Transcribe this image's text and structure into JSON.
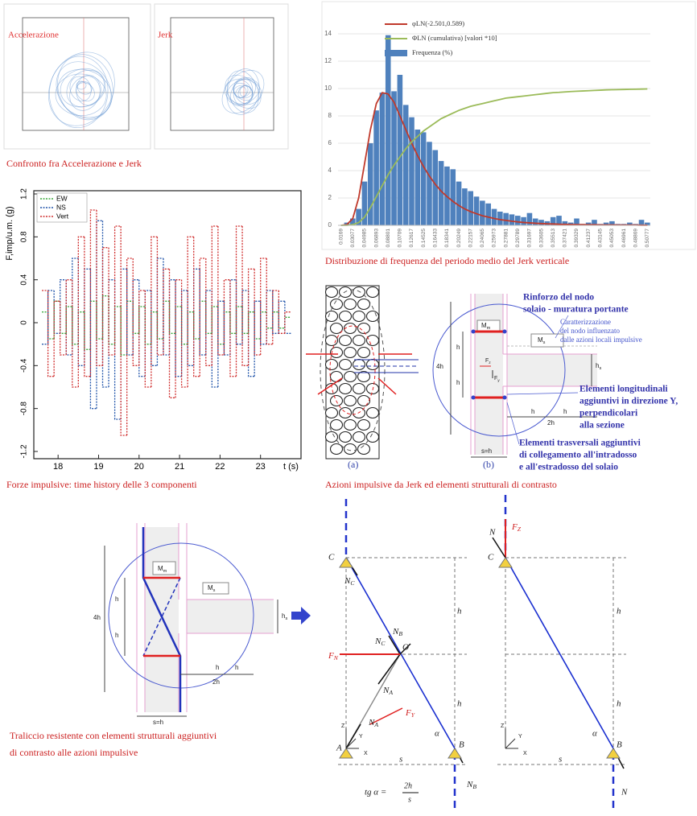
{
  "chart_data": [
    {
      "type": "bar",
      "caption": "Distribuzione di frequenza del periodo medio del Jerk verticale",
      "categories": [
        "0.0169",
        null,
        "0.03077",
        null,
        "0.04985",
        null,
        "0.06893",
        null,
        "0.08801",
        null,
        "0.10709",
        null,
        "0.12617",
        null,
        "0.14525",
        null,
        "0.16433",
        null,
        "0.18341",
        null,
        "0.20249",
        null,
        "0.22157",
        null,
        "0.24065",
        null,
        "0.25973",
        null,
        "0.27881",
        null,
        "0.29789",
        null,
        "0.31697",
        null,
        "0.33605",
        null,
        "0.35513",
        null,
        "0.37421",
        null,
        "0.39329",
        null,
        "0.41237",
        null,
        "0.43145",
        null,
        "0.45053",
        null,
        "0.46961",
        null,
        "0.48869",
        null,
        "0.50777"
      ],
      "series": [
        {
          "name": "φLN(-2.501,0.589)",
          "type": "line",
          "color": "#c0392b",
          "values": [
            0,
            0.05,
            0.5,
            2.0,
            4.5,
            7.0,
            8.9,
            9.7,
            9.6,
            9.0,
            8.0,
            7.0,
            6.0,
            5.1,
            4.3,
            3.6,
            3.0,
            2.5,
            2.1,
            1.75,
            1.45,
            1.2,
            1.0,
            0.85,
            0.7,
            0.6,
            0.5,
            0.42,
            0.36,
            0.3,
            0.25,
            0.21,
            0.18,
            0.15,
            0.13,
            0.11,
            0.1,
            0.08,
            0.07,
            0.06,
            0.05,
            0.05,
            0.04,
            0.04,
            0.03,
            0.03,
            0.03,
            0.02,
            0.02,
            0.02,
            0.02,
            0.01,
            0.01
          ]
        },
        {
          "name": "ΦLN (cumulativa)  [valori *10]",
          "type": "line",
          "color": "#9bbb59",
          "values": [
            0,
            0,
            0.05,
            0.2,
            0.6,
            1.3,
            2.1,
            2.9,
            3.7,
            4.4,
            5.0,
            5.6,
            6.1,
            6.5,
            6.9,
            7.2,
            7.5,
            7.8,
            8.0,
            8.2,
            8.4,
            8.55,
            8.7,
            8.8,
            8.9,
            9.0,
            9.1,
            9.2,
            9.3,
            9.35,
            9.4,
            9.45,
            9.5,
            9.55,
            9.6,
            9.65,
            9.7,
            9.72,
            9.75,
            9.78,
            9.8,
            9.82,
            9.84,
            9.86,
            9.88,
            9.9,
            9.91,
            9.92,
            9.93,
            9.94,
            9.95,
            9.96,
            9.97
          ]
        },
        {
          "name": "Frequenza (%)",
          "type": "bar",
          "color": "#4f81bd",
          "values": [
            0,
            0.2,
            0.5,
            1.2,
            3.2,
            6.0,
            8.4,
            9.7,
            13.9,
            9.8,
            11.0,
            8.8,
            7.9,
            7.0,
            6.8,
            6.1,
            5.5,
            4.7,
            4.3,
            4.1,
            3.2,
            2.7,
            2.5,
            2.1,
            1.8,
            1.6,
            1.2,
            1.0,
            0.9,
            0.8,
            0.7,
            0.6,
            0.9,
            0.5,
            0.4,
            0.3,
            0.6,
            0.7,
            0.3,
            0.2,
            0.5,
            0.1,
            0.2,
            0.4,
            0.1,
            0.2,
            0.3,
            0.1,
            0.1,
            0.2,
            0.1,
            0.4,
            0.2
          ]
        }
      ],
      "ylim": [
        0,
        14
      ],
      "yticks": [
        0,
        2,
        4,
        6,
        8,
        10,
        12,
        14
      ],
      "grid": true,
      "legend": "top-right"
    },
    {
      "type": "step",
      "caption": "Forze impulsive: time history delle 3 componenti",
      "ylabel": "F,imp/u.m. (g)",
      "xlabel": "t (s)",
      "x": [
        17.6,
        17.75,
        17.9,
        18.05,
        18.2,
        18.35,
        18.5,
        18.65,
        18.8,
        18.95,
        19.1,
        19.25,
        19.4,
        19.55,
        19.7,
        19.85,
        20.0,
        20.15,
        20.3,
        20.45,
        20.6,
        20.75,
        20.9,
        21.05,
        21.2,
        21.35,
        21.5,
        21.65,
        21.8,
        21.95,
        22.1,
        22.25,
        22.4,
        22.55,
        22.7,
        22.85,
        23.0,
        23.15,
        23.3,
        23.45,
        23.6
      ],
      "series": [
        {
          "name": "EW",
          "color": "#3aa83a",
          "values": [
            0.1,
            -0.15,
            0.2,
            -0.1,
            0.15,
            -0.2,
            0.1,
            -0.25,
            0.2,
            -0.15,
            0.25,
            -0.2,
            0.15,
            -0.3,
            0.2,
            -0.1,
            0.15,
            -0.2,
            0.1,
            -0.15,
            0.2,
            -0.1,
            0.15,
            -0.2,
            0.1,
            -0.15,
            0.2,
            -0.1,
            0.15,
            -0.2,
            0.1,
            -0.1,
            0.15,
            -0.1,
            0.1,
            -0.15,
            0.1,
            -0.05,
            0.1,
            -0.05,
            0.05
          ]
        },
        {
          "name": "NS",
          "color": "#2255aa",
          "values": [
            -0.2,
            0.3,
            -0.1,
            0.4,
            -0.3,
            0.6,
            -0.4,
            0.5,
            -0.8,
            0.95,
            -0.6,
            0.4,
            -0.9,
            0.5,
            -0.3,
            0.4,
            -0.5,
            0.3,
            -0.4,
            0.6,
            -0.3,
            0.4,
            -0.5,
            0.3,
            -0.4,
            0.5,
            -0.3,
            0.3,
            -0.6,
            0.2,
            -0.3,
            0.4,
            -0.2,
            0.3,
            -0.5,
            0.2,
            -0.2,
            0.3,
            -0.1,
            0.2,
            -0.1
          ]
        },
        {
          "name": "Vert",
          "color": "#d03030",
          "values": [
            0.3,
            -0.5,
            0.2,
            -0.3,
            0.4,
            -0.6,
            0.8,
            -0.5,
            1.05,
            -0.4,
            0.7,
            -0.3,
            0.9,
            -1.05,
            0.6,
            -0.4,
            0.3,
            -0.6,
            0.8,
            -0.3,
            0.5,
            -0.7,
            0.4,
            -0.6,
            0.8,
            -0.5,
            0.6,
            -0.4,
            0.9,
            -0.3,
            0.4,
            -0.5,
            0.9,
            -0.4,
            0.5,
            -0.3,
            0.6,
            -0.2,
            0.3,
            -0.1,
            0.1
          ]
        }
      ],
      "xlim": [
        17.4,
        24
      ],
      "xticks": [
        18,
        19,
        20,
        21,
        22,
        23
      ],
      "ylim": [
        -1.2,
        1.2
      ],
      "yticks": [
        -1.2,
        -0.8,
        -0.4,
        0,
        0.4,
        0.8,
        1.2
      ],
      "legend": "top-left"
    }
  ],
  "panels": {
    "accel": "Accelerazione",
    "jerk": "Jerk",
    "caption": "Confronto fra Accelerazione e Jerk"
  },
  "section": {
    "caption": "Azioni impulsive da Jerk  ed elementi strutturali di contrasto",
    "a": "(a)",
    "b": "(b)",
    "Mm": {
      "text": "M",
      "sub": "m"
    },
    "Ms": {
      "text": "M",
      "sub": "s"
    },
    "h4": "4h",
    "h": "h",
    "hs": {
      "text": "h",
      "sub": "s"
    },
    "h2": "2h",
    "s": "s=h",
    "Fz": {
      "text": "F",
      "sub": "z"
    },
    "Fy": {
      "text": "F",
      "sub": "y"
    },
    "note1": [
      "Rinforzo del nodo",
      "solaio - muratura portante"
    ],
    "note2": [
      "Caratterizzazione",
      "del nodo influenzato",
      "dalle azioni locali impulsive"
    ],
    "note3": [
      "Elementi longitudinali",
      "aggiuntivi in direzione Y,",
      "perpendicolari",
      "alla sezione"
    ],
    "note4": [
      "Elementi trasversali aggiuntivi",
      "di collegamento all'intradosso",
      "e all'estradosso del solaio"
    ]
  },
  "truss": {
    "caption": [
      "Traliccio resistente con elementi strutturali aggiuntivi",
      "di contrasto alle azioni impulsive"
    ],
    "C": "C",
    "O": "O",
    "A": "A",
    "B": "B",
    "N": "N",
    "NC": {
      "text": "N",
      "sub": "C"
    },
    "NB": {
      "text": "N",
      "sub": "B"
    },
    "NA": {
      "text": "N",
      "sub": "A"
    },
    "FN": {
      "text": "F",
      "sub": "N"
    },
    "FY": {
      "text": "F",
      "sub": "Y"
    },
    "FZ": {
      "text": "F",
      "sub": "Z"
    },
    "h": "h",
    "s": "s",
    "alpha": "α",
    "tg": "tg α =",
    "num": "2h",
    "den": "s",
    "Z": "Z",
    "Y": "Y",
    "X": "X"
  }
}
